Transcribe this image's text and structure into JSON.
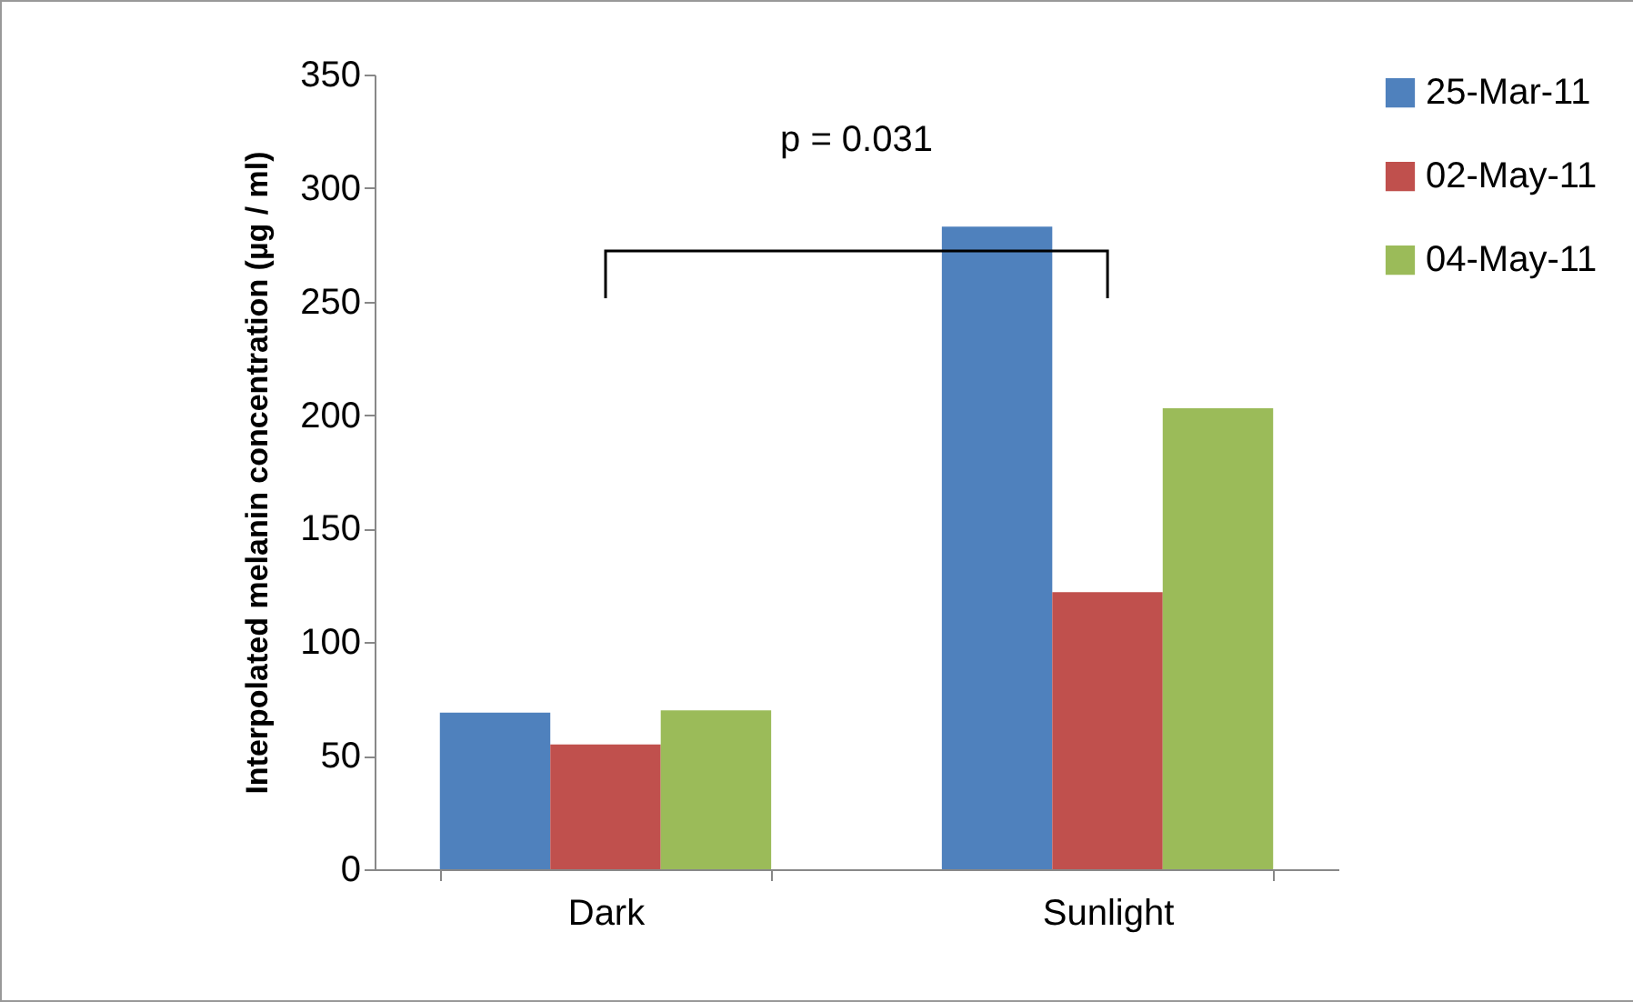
{
  "chart_data": {
    "type": "bar",
    "ylabel": "Interpolated melanin concentration (µg / ml)",
    "categories": [
      "Dark",
      "Sunlight"
    ],
    "series": [
      {
        "name": "25-Mar-11",
        "color": "#4f81bd",
        "values": [
          69,
          283
        ]
      },
      {
        "name": "02-May-11",
        "color": "#c0504d",
        "values": [
          55,
          122
        ]
      },
      {
        "name": "04-May-11",
        "color": "#9bbb59",
        "values": [
          70,
          203
        ]
      }
    ],
    "ylim": [
      0,
      350
    ],
    "yticks": [
      0,
      50,
      100,
      150,
      200,
      250,
      300,
      350
    ],
    "grid": false,
    "legend": "right",
    "annotations": [
      "p = 0.031"
    ]
  }
}
